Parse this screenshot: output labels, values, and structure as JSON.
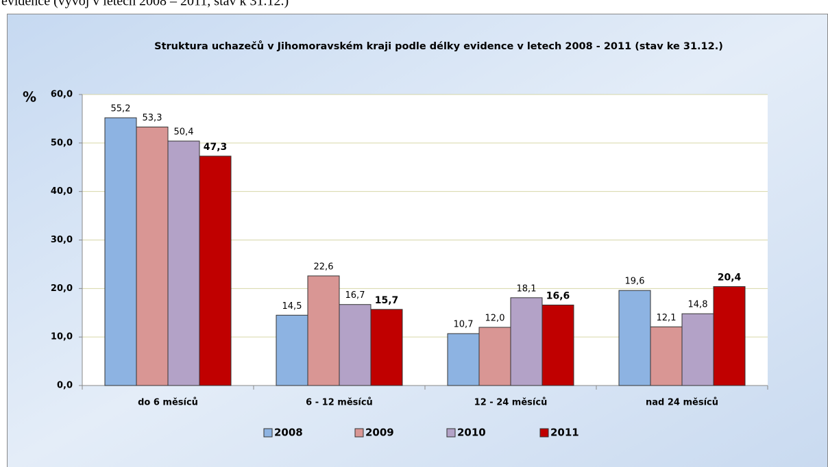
{
  "caption": "evidence (vývoj v letech 2008 – 2011, stav k 31.12.)",
  "chart_data": {
    "type": "bar",
    "title": "Struktura uchazečů v Jihomoravském kraji podle délky evidence v letech 2008 - 2011  (stav ke 31.12.)",
    "y_label": "%",
    "categories": [
      "do 6 měsíců",
      "6 - 12 měsíců",
      "12 - 24 měsíců",
      "nad 24 měsíců"
    ],
    "series": [
      {
        "name": "2008",
        "color": "#8db3e2",
        "values": [
          55.2,
          14.5,
          10.7,
          19.6
        ],
        "value_labels": [
          "55,2",
          "14,5",
          "10,7",
          "19,6"
        ]
      },
      {
        "name": "2009",
        "color": "#d99694",
        "values": [
          53.3,
          22.6,
          12.0,
          12.1
        ],
        "value_labels": [
          "53,3",
          "22,6",
          "12,0",
          "12,1"
        ]
      },
      {
        "name": "2010",
        "color": "#b3a2c7",
        "values": [
          50.4,
          16.7,
          18.1,
          14.8
        ],
        "value_labels": [
          "50,4",
          "16,7",
          "18,1",
          "14,8"
        ]
      },
      {
        "name": "2011",
        "color": "#c00000",
        "values": [
          47.3,
          15.7,
          16.6,
          20.4
        ],
        "value_labels": [
          "47,3",
          "15,7",
          "16,6",
          "20,4"
        ]
      }
    ],
    "ylim": [
      0,
      60
    ],
    "yticks": [
      {
        "value": 0,
        "label": "0,0"
      },
      {
        "value": 10,
        "label": "10,0"
      },
      {
        "value": 20,
        "label": "20,0"
      },
      {
        "value": 30,
        "label": "30,0"
      },
      {
        "value": 40,
        "label": "40,0"
      },
      {
        "value": 50,
        "label": "50,0"
      },
      {
        "value": 60,
        "label": "60,0"
      }
    ],
    "grid": true,
    "legend": "bottom"
  }
}
